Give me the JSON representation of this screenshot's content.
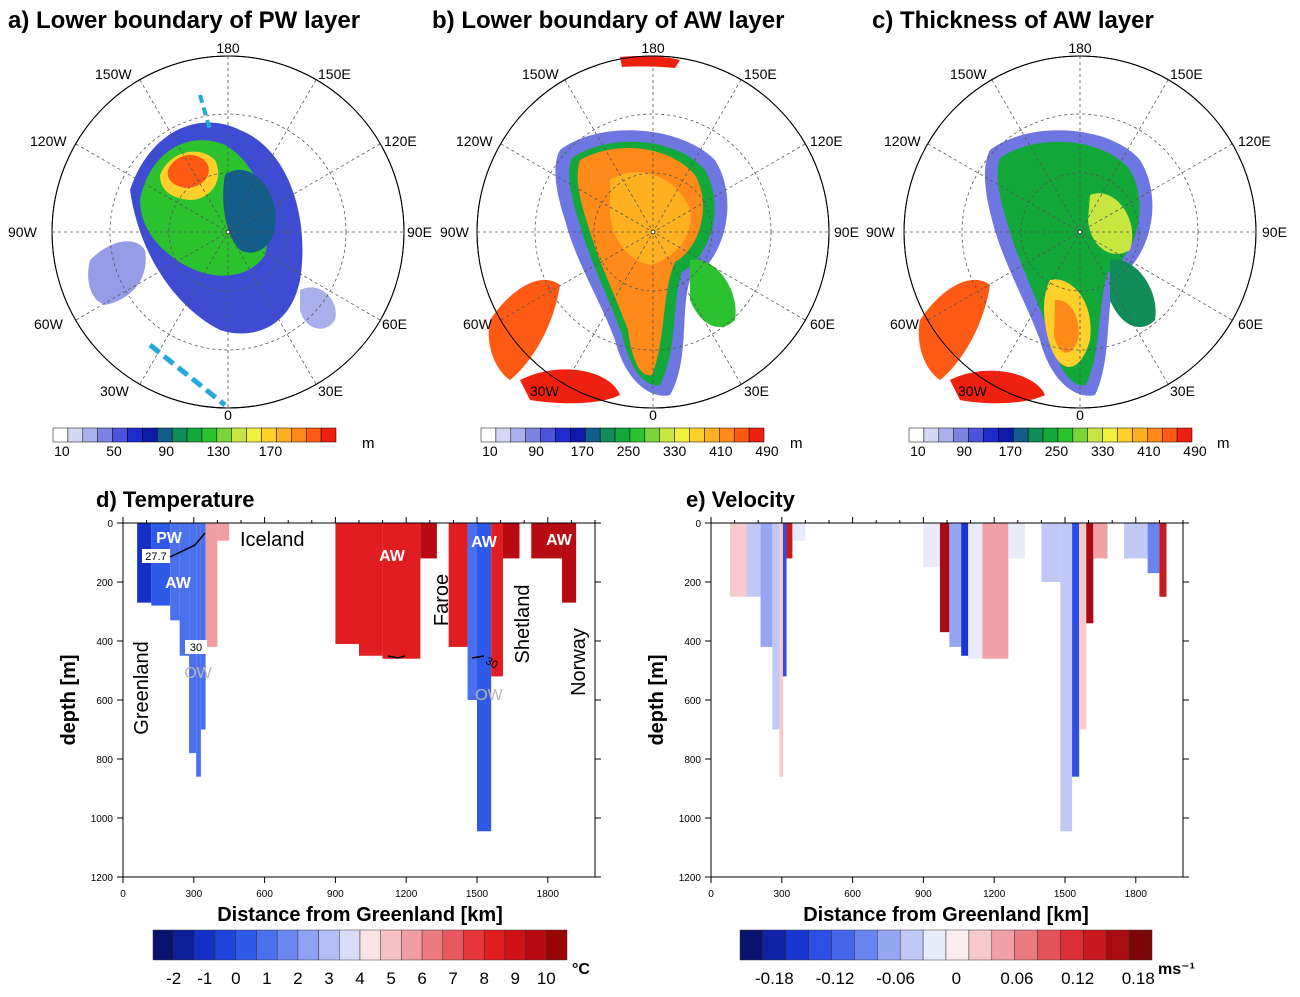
{
  "maps": [
    {
      "title": "a) Lower boundary of PW layer",
      "lon_labels": {
        "top": "180",
        "bottom": "0",
        "left": "90W",
        "right": "90E",
        "upper_left_1": "150W",
        "upper_left_2": "120W",
        "upper_right_1": "150E",
        "upper_right_2": "120E",
        "lower_left_1": "60W",
        "lower_left_2": "30W",
        "lower_right_1": "60E",
        "lower_right_2": "30E"
      },
      "colorbar": {
        "tick_labels": [
          "10",
          "50",
          "90",
          "130",
          "170"
        ],
        "unit": "m"
      }
    },
    {
      "title": "b) Lower boundary of AW layer",
      "lon_labels": {
        "top": "180",
        "bottom": "0",
        "left": "90W",
        "right": "90E",
        "upper_left_1": "150W",
        "upper_left_2": "120W",
        "upper_right_1": "150E",
        "upper_right_2": "120E",
        "lower_left_1": "60W",
        "lower_left_2": "30W",
        "lower_right_1": "60E",
        "lower_right_2": "30E"
      },
      "colorbar": {
        "tick_labels": [
          "10",
          "90",
          "170",
          "250",
          "330",
          "410",
          "490"
        ],
        "unit": "m"
      }
    },
    {
      "title": "c) Thickness of AW layer",
      "lon_labels": {
        "top": "180",
        "bottom": "0",
        "left": "90W",
        "right": "90E",
        "upper_left_1": "150W",
        "upper_left_2": "120W",
        "upper_right_1": "150E",
        "upper_right_2": "120E",
        "lower_left_1": "60W",
        "lower_left_2": "30W",
        "lower_right_1": "60E",
        "lower_right_2": "30E"
      },
      "colorbar": {
        "tick_labels": [
          "10",
          "90",
          "170",
          "250",
          "330",
          "410",
          "490"
        ],
        "unit": "m"
      }
    }
  ],
  "map_colors": [
    "#ffffff",
    "#d4d8f5",
    "#a9b0ec",
    "#7c84e2",
    "#4a55d9",
    "#1c2dcc",
    "#0d1aa8",
    "#135d8a",
    "#0f8c57",
    "#12a83a",
    "#2cc12e",
    "#7ad43a",
    "#c8e640",
    "#f2ef3a",
    "#ffd02a",
    "#ffb020",
    "#ff8a1a",
    "#ff5a14",
    "#f0200f"
  ],
  "sections": [
    {
      "title": "d) Temperature",
      "ylabel": "depth [m]",
      "xlabel": "Distance from Greenland [km]",
      "x_ticks": [
        "0",
        "300",
        "600",
        "900",
        "1200",
        "1500",
        "1800"
      ],
      "y_ticks": [
        "0",
        "200",
        "400",
        "600",
        "800",
        "1000",
        "1200"
      ],
      "xlim": [
        0,
        2000
      ],
      "ylim": [
        0,
        1200
      ],
      "annotations": {
        "pw": "PW",
        "aw1": "AW",
        "aw2": "AW",
        "aw3": "AW",
        "aw4": "AW",
        "ow1": "OW",
        "ow2": "OW",
        "c277": "27.7",
        "c30a": "30",
        "c30b": "30",
        "greenland": "Greenland",
        "iceland": "Iceland",
        "faroe": "Faroe",
        "shetland": "Shetland",
        "norway": "Norway"
      },
      "colorbar": {
        "tick_labels": [
          "-2",
          "-1",
          "0",
          "1",
          "2",
          "3",
          "4",
          "5",
          "6",
          "7",
          "8",
          "9",
          "10"
        ],
        "unit": "°C"
      }
    },
    {
      "title": "e) Velocity",
      "ylabel": "depth [m]",
      "xlabel": "Distance from Greenland [km]",
      "x_ticks": [
        "0",
        "300",
        "600",
        "900",
        "1200",
        "1500",
        "1800"
      ],
      "y_ticks": [
        "0",
        "200",
        "400",
        "600",
        "800",
        "1000",
        "1200"
      ],
      "xlim": [
        0,
        2000
      ],
      "ylim": [
        0,
        1200
      ],
      "colorbar": {
        "tick_labels": [
          "-0.18",
          "-0.12",
          "-0.06",
          "0",
          "0.06",
          "0.12",
          "0.18"
        ],
        "unit": "ms⁻¹"
      }
    }
  ],
  "chart_data": [
    {
      "type": "heatmap",
      "title": "a) Lower boundary of PW layer",
      "colorbar_ticks": [
        10,
        50,
        90,
        130,
        170
      ],
      "unit": "m"
    },
    {
      "type": "heatmap",
      "title": "b) Lower boundary of AW layer",
      "colorbar_ticks": [
        10,
        90,
        170,
        250,
        330,
        410,
        490
      ],
      "unit": "m"
    },
    {
      "type": "heatmap",
      "title": "c) Thickness of AW layer",
      "colorbar_ticks": [
        10,
        90,
        170,
        250,
        330,
        410,
        490
      ],
      "unit": "m"
    },
    {
      "type": "heatmap",
      "title": "d) Temperature",
      "xlabel": "Distance from Greenland [km]",
      "ylabel": "depth [m]",
      "xlim": [
        0,
        2000
      ],
      "ylim": [
        1200,
        0
      ],
      "x_ticks": [
        0,
        300,
        600,
        900,
        1200,
        1500,
        1800
      ],
      "y_ticks": [
        0,
        200,
        400,
        600,
        800,
        1000,
        1200
      ],
      "colorbar_ticks": [
        -2,
        -1,
        0,
        1,
        2,
        3,
        4,
        5,
        6,
        7,
        8,
        9,
        10
      ],
      "unit": "°C",
      "columns": [
        {
          "x0": 60,
          "x1": 120,
          "bottom": 270,
          "temp": -1.5
        },
        {
          "x0": 120,
          "x1": 200,
          "bottom": 280,
          "temp": 0
        },
        {
          "x0": 200,
          "x1": 240,
          "bottom": 330,
          "temp": 0.5
        },
        {
          "x0": 240,
          "x1": 280,
          "bottom": 450,
          "temp": 0.5
        },
        {
          "x0": 280,
          "x1": 310,
          "bottom": 780,
          "temp": 0.5
        },
        {
          "x0": 310,
          "x1": 330,
          "bottom": 860,
          "temp": 0.5
        },
        {
          "x0": 330,
          "x1": 350,
          "bottom": 700,
          "temp": 1
        },
        {
          "x0": 350,
          "x1": 400,
          "bottom": 420,
          "temp": 5
        },
        {
          "x0": 400,
          "x1": 450,
          "bottom": 60,
          "temp": 5
        },
        {
          "x0": 900,
          "x1": 1000,
          "bottom": 410,
          "temp": 8
        },
        {
          "x0": 1000,
          "x1": 1100,
          "bottom": 450,
          "temp": 8
        },
        {
          "x0": 1100,
          "x1": 1260,
          "bottom": 460,
          "temp": 8
        },
        {
          "x0": 1260,
          "x1": 1330,
          "bottom": 120,
          "temp": 9
        },
        {
          "x0": 1380,
          "x1": 1460,
          "bottom": 420,
          "temp": 8
        },
        {
          "x0": 1460,
          "x1": 1500,
          "bottom": 600,
          "temp": 1
        },
        {
          "x0": 1500,
          "x1": 1560,
          "bottom": 1045,
          "temp": 0
        },
        {
          "x0": 1560,
          "x1": 1610,
          "bottom": 520,
          "temp": 8
        },
        {
          "x0": 1610,
          "x1": 1680,
          "bottom": 120,
          "temp": 9
        },
        {
          "x0": 1730,
          "x1": 1860,
          "bottom": 120,
          "temp": 9
        },
        {
          "x0": 1860,
          "x1": 1920,
          "bottom": 270,
          "temp": 9
        }
      ]
    },
    {
      "type": "heatmap",
      "title": "e) Velocity",
      "xlabel": "Distance from Greenland [km]",
      "ylabel": "depth [m]",
      "xlim": [
        0,
        2000
      ],
      "ylim": [
        1200,
        0
      ],
      "x_ticks": [
        0,
        300,
        600,
        900,
        1200,
        1500,
        1800
      ],
      "y_ticks": [
        0,
        200,
        400,
        600,
        800,
        1000,
        1200
      ],
      "colorbar_ticks": [
        -0.18,
        -0.12,
        -0.06,
        0,
        0.06,
        0.12,
        0.18
      ],
      "unit": "ms-1",
      "columns": [
        {
          "x0": 80,
          "x1": 150,
          "bottom": 250,
          "v": 0.02
        },
        {
          "x0": 150,
          "x1": 210,
          "bottom": 250,
          "v": -0.04
        },
        {
          "x0": 210,
          "x1": 260,
          "bottom": 420,
          "v": -0.08
        },
        {
          "x0": 260,
          "x1": 290,
          "bottom": 700,
          "v": -0.05
        },
        {
          "x0": 290,
          "x1": 305,
          "bottom": 860,
          "v": 0.03
        },
        {
          "x0": 305,
          "x1": 320,
          "bottom": 520,
          "v": -0.14
        },
        {
          "x0": 320,
          "x1": 345,
          "bottom": 120,
          "v": 0.14
        },
        {
          "x0": 345,
          "x1": 400,
          "bottom": 60,
          "v": -0.02
        },
        {
          "x0": 900,
          "x1": 970,
          "bottom": 150,
          "v": -0.03
        },
        {
          "x0": 970,
          "x1": 1010,
          "bottom": 370,
          "v": 0.16
        },
        {
          "x0": 1010,
          "x1": 1060,
          "bottom": 420,
          "v": -0.06
        },
        {
          "x0": 1060,
          "x1": 1090,
          "bottom": 450,
          "v": -0.16
        },
        {
          "x0": 1090,
          "x1": 1150,
          "bottom": 460,
          "v": -0.03
        },
        {
          "x0": 1150,
          "x1": 1260,
          "bottom": 460,
          "v": 0.05
        },
        {
          "x0": 1260,
          "x1": 1330,
          "bottom": 120,
          "v": -0.02
        },
        {
          "x0": 1400,
          "x1": 1480,
          "bottom": 200,
          "v": -0.05
        },
        {
          "x0": 1480,
          "x1": 1530,
          "bottom": 1045,
          "v": -0.04
        },
        {
          "x0": 1530,
          "x1": 1560,
          "bottom": 860,
          "v": -0.14
        },
        {
          "x0": 1560,
          "x1": 1590,
          "bottom": 700,
          "v": 0.03
        },
        {
          "x0": 1590,
          "x1": 1620,
          "bottom": 340,
          "v": 0.16
        },
        {
          "x0": 1620,
          "x1": 1680,
          "bottom": 120,
          "v": 0.05
        },
        {
          "x0": 1750,
          "x1": 1850,
          "bottom": 120,
          "v": -0.04
        },
        {
          "x0": 1850,
          "x1": 1900,
          "bottom": 170,
          "v": -0.1
        },
        {
          "x0": 1900,
          "x1": 1930,
          "bottom": 250,
          "v": 0.14
        }
      ]
    }
  ]
}
